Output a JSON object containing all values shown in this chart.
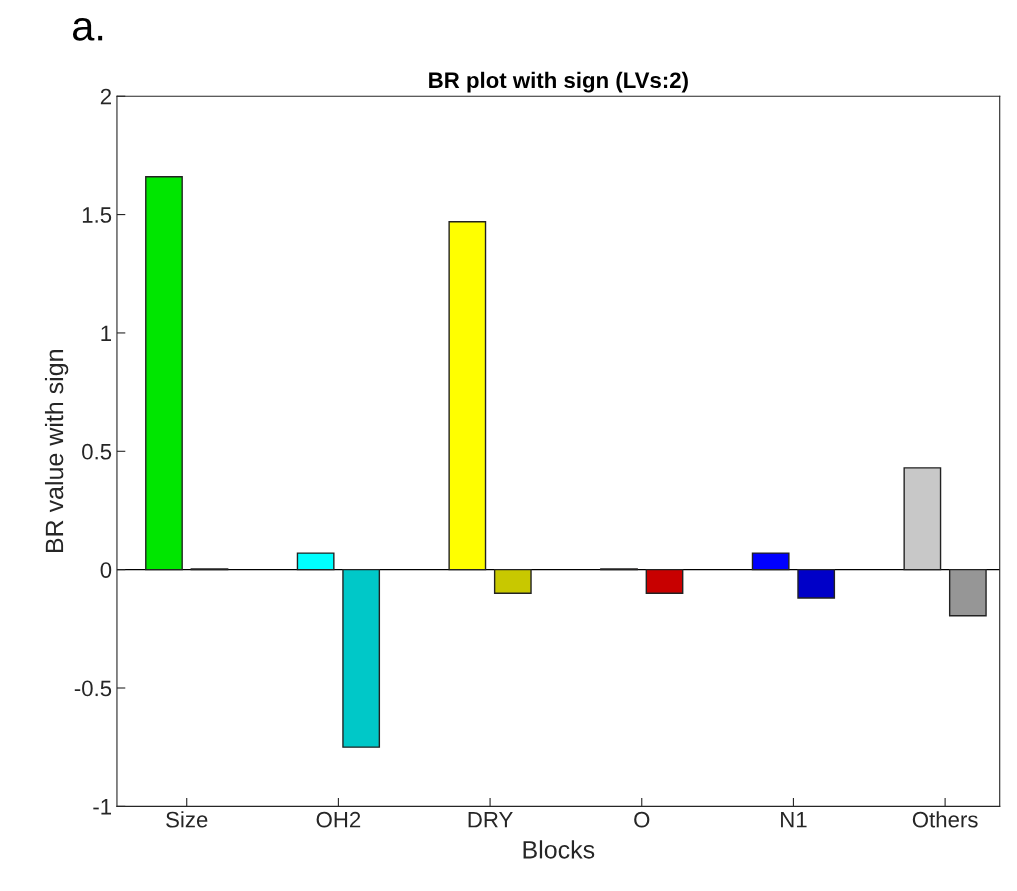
{
  "chart_data": {
    "type": "bar",
    "title": "BR plot with sign (LVs:2)",
    "xlabel": "Blocks",
    "ylabel": "BR value with sign",
    "categories": [
      "Size",
      "OH2",
      "DRY",
      "O",
      "N1",
      "Others"
    ],
    "series": [
      {
        "values": [
          1.66,
          0.07,
          1.47,
          0.003,
          0.07,
          0.43
        ],
        "colors": [
          "#00e600",
          "#00ffff",
          "#ffff00",
          "#e60000",
          "#0000ff",
          "#c8c8c8"
        ]
      },
      {
        "values": [
          0.003,
          -0.75,
          -0.1,
          -0.1,
          -0.12,
          -0.195
        ],
        "colors": [
          "#00b400",
          "#00c8c8",
          "#c8c800",
          "#c80000",
          "#0000c8",
          "#969696"
        ]
      }
    ],
    "ylim": [
      -1,
      2
    ],
    "yticks": [
      -1,
      -0.5,
      0,
      0.5,
      1,
      1.5,
      2
    ],
    "ref_lines": [
      {
        "axis": "y",
        "value": 0,
        "color": "#000000"
      }
    ],
    "annotations": [
      "a."
    ],
    "grid": false,
    "legend": false
  }
}
